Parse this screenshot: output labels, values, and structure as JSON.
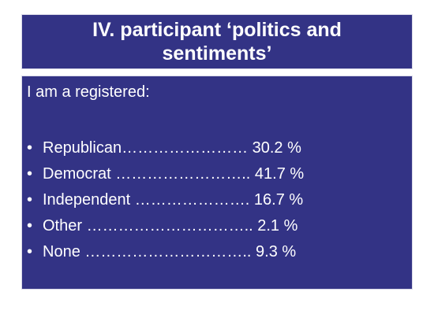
{
  "slide": {
    "title": "IV. participant ‘politics and sentiments’",
    "intro": "I am a registered:",
    "bullet": "•",
    "items": [
      {
        "text": "Republican…………………… 30.2 %"
      },
      {
        "text": "Democrat …………………….. 41.7 %"
      },
      {
        "text": "Independent …………………. 16.7 %"
      },
      {
        "text": "Other …………………………..  2.1 %"
      },
      {
        "text": "None ………………………….. 9.3 %"
      }
    ]
  },
  "colors": {
    "panel_background": "#333385",
    "text": "#ffffff",
    "page_background": "#ffffff"
  }
}
